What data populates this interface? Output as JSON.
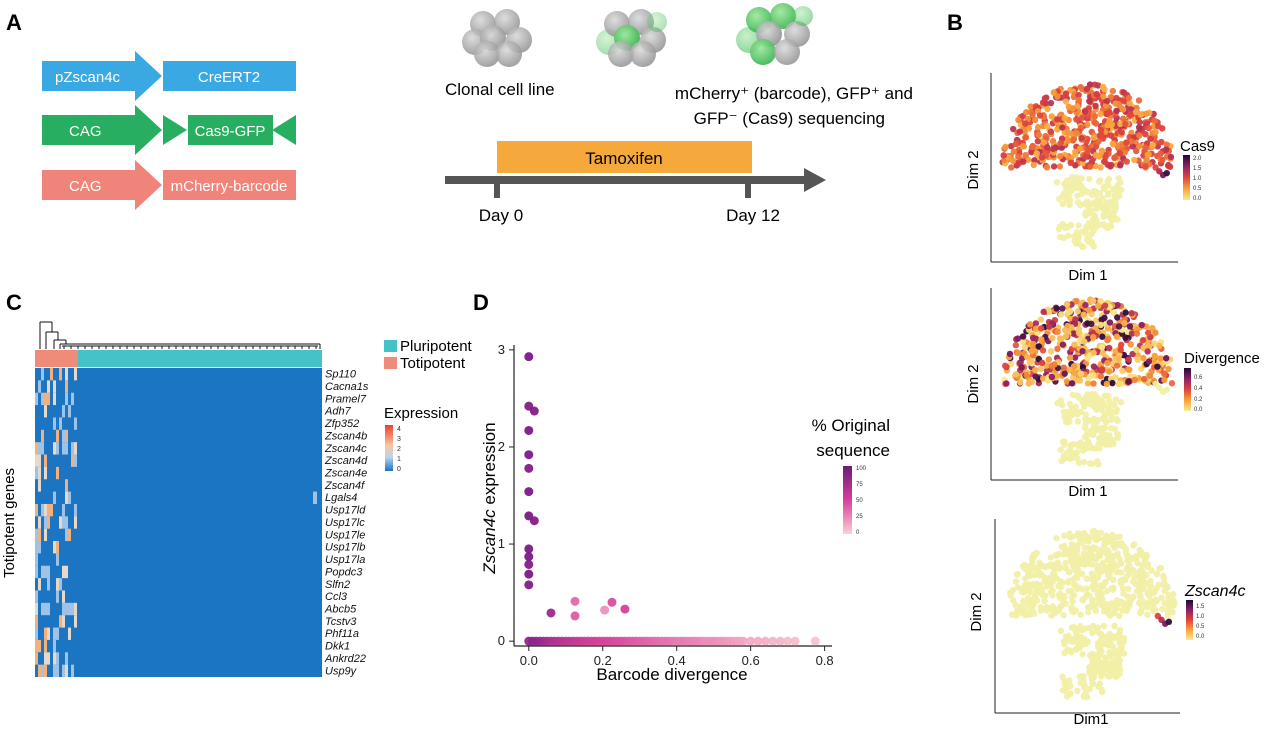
{
  "panels": {
    "A": {
      "letter": "A",
      "constructs": [
        {
          "promoter": "pZscan4c",
          "gene": "CreERT2",
          "color": "#3aa9e3"
        },
        {
          "promoter": "CAG",
          "gene": "Cas9-GFP",
          "color": "#27ae60"
        },
        {
          "promoter": "CAG",
          "gene": "mCherry-barcode",
          "color": "#f0837a"
        }
      ],
      "stage_labels": {
        "clonal": "Clonal cell line",
        "sequencing_line1": "mCherry⁺ (barcode), GFP⁺ and",
        "sequencing_line2": "GFP⁻ (Cas9) sequencing"
      },
      "treatment": "Tamoxifen",
      "day_start": "Day 0",
      "day_end": "Day 12",
      "colors": {
        "treatment": "#f5a93a",
        "arrow": "#555555"
      }
    },
    "B": {
      "letter": "B",
      "plots": [
        {
          "legend_title": "Cas9",
          "legend_ticks": [
            "2.0",
            "1.5",
            "1.0",
            "0.5",
            "0.0"
          ],
          "x_label": "Dim 1",
          "y_label": "Dim 2",
          "mode": "cas9"
        },
        {
          "legend_title": "Divergence",
          "legend_ticks": [
            "0.6",
            "0.4",
            "0.2",
            "0.0"
          ],
          "x_label": "Dim 1",
          "y_label": "Dim 2",
          "mode": "divergence"
        },
        {
          "legend_title": "Zscan4c",
          "legend_ticks": [
            "1.5",
            "1.0",
            "0.5",
            "0.0"
          ],
          "x_label": "Dim1",
          "y_label": "Dim 2",
          "mode": "zscan"
        }
      ],
      "colors": {
        "low": "#f3f0a4",
        "mid": "#f59a3a",
        "high": "#d0392b",
        "max": "#2a0a3a"
      }
    },
    "C": {
      "letter": "C",
      "legend": [
        {
          "label": "Pluripotent",
          "color": "#45c1c8"
        },
        {
          "label": "Totipotent",
          "color": "#ee8c79"
        }
      ],
      "expression_title": "Expression",
      "expression_ticks": [
        "4",
        "3",
        "2",
        "1",
        "0"
      ],
      "y_title": "Totipotent genes",
      "genes": [
        "Sp110",
        "Cacna1s",
        "Pramel7",
        "Adh7",
        "Zfp352",
        "Zscan4b",
        "Zscan4c",
        "Zscan4d",
        "Zscan4e",
        "Zscan4f",
        "Lgals4",
        "Usp17ld",
        "Usp17lc",
        "Usp17le",
        "Usp17lb",
        "Usp17la",
        "Popdc3",
        "Slfn2",
        "Ccl3",
        "Abcb5",
        "Tcstv3",
        "Phf11a",
        "Dkk1",
        "Ankrd22",
        "Usp9y"
      ],
      "colors": {
        "low": "#1b75c2",
        "high": "#f08a3d"
      }
    },
    "D": {
      "letter": "D",
      "legend_title_1": "% Original",
      "legend_title_2": "sequence",
      "legend_ticks": [
        "100",
        "75",
        "50",
        "25",
        "0"
      ],
      "colors": {
        "high": "#7a1a86",
        "low": "#f9c7cf"
      }
    }
  },
  "chart_data": {
    "type": "scatter",
    "title": "",
    "xlabel": "Barcode divergence",
    "ylabel": "Zscan4c expression",
    "xlim": [
      -0.04,
      0.82
    ],
    "ylim": [
      -0.05,
      3.05
    ],
    "xticks": [
      "0.0",
      "0.2",
      "0.4",
      "0.6",
      "0.8"
    ],
    "yticks": [
      "0",
      "1",
      "2",
      "3"
    ],
    "grid": false,
    "legend_placement": "right",
    "points_nonzero": [
      [
        0.0,
        2.93,
        100
      ],
      [
        0.0,
        2.42,
        95
      ],
      [
        0.015,
        2.37,
        95
      ],
      [
        0.0,
        2.17,
        100
      ],
      [
        0.0,
        1.92,
        100
      ],
      [
        0.0,
        1.78,
        95
      ],
      [
        0.0,
        1.54,
        100
      ],
      [
        0.0,
        1.29,
        100
      ],
      [
        0.015,
        1.24,
        95
      ],
      [
        0.0,
        0.95,
        100
      ],
      [
        0.0,
        0.87,
        100
      ],
      [
        0.0,
        0.79,
        95
      ],
      [
        0.0,
        0.69,
        100
      ],
      [
        0.0,
        0.58,
        95
      ],
      [
        0.06,
        0.29,
        80
      ],
      [
        0.125,
        0.41,
        35
      ],
      [
        0.125,
        0.26,
        40
      ],
      [
        0.205,
        0.32,
        20
      ],
      [
        0.225,
        0.4,
        45
      ],
      [
        0.26,
        0.33,
        50
      ]
    ],
    "zero_points_x": [
      0.0,
      0.01,
      0.02,
      0.03,
      0.04,
      0.05,
      0.06,
      0.07,
      0.08,
      0.09,
      0.1,
      0.11,
      0.12,
      0.13,
      0.14,
      0.15,
      0.16,
      0.17,
      0.18,
      0.19,
      0.2,
      0.21,
      0.22,
      0.23,
      0.24,
      0.25,
      0.26,
      0.27,
      0.28,
      0.29,
      0.3,
      0.31,
      0.32,
      0.33,
      0.34,
      0.35,
      0.36,
      0.37,
      0.38,
      0.39,
      0.4,
      0.41,
      0.42,
      0.43,
      0.44,
      0.45,
      0.46,
      0.47,
      0.48,
      0.49,
      0.5,
      0.51,
      0.52,
      0.53,
      0.54,
      0.55,
      0.56,
      0.57,
      0.58,
      0.6,
      0.62,
      0.64,
      0.66,
      0.68,
      0.7,
      0.72,
      0.775
    ],
    "zero_points_pct": [
      95,
      90,
      88,
      85,
      80,
      78,
      75,
      72,
      70,
      68,
      66,
      64,
      62,
      60,
      58,
      56,
      55,
      54,
      52,
      50,
      50,
      49,
      48,
      47,
      46,
      45,
      44,
      42,
      41,
      40,
      39,
      38,
      37,
      36,
      35,
      34,
      33,
      32,
      31,
      30,
      29,
      28,
      28,
      27,
      26,
      25,
      24,
      23,
      22,
      22,
      21,
      20,
      19,
      18,
      17,
      16,
      15,
      14,
      13,
      12,
      11,
      10,
      9,
      8,
      6,
      5,
      3
    ]
  }
}
